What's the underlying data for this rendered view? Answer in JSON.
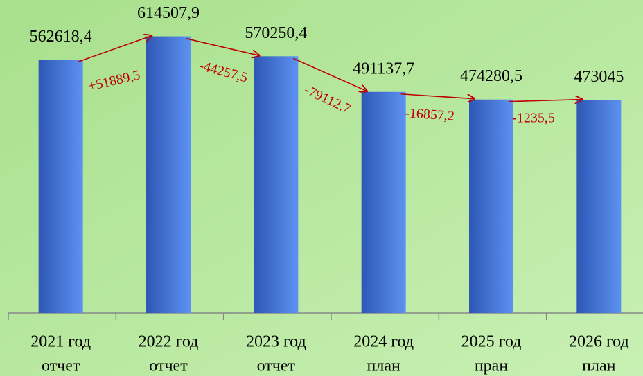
{
  "chart_data": {
    "type": "bar",
    "categories": [
      [
        "2021 год",
        "отчет"
      ],
      [
        "2022 год",
        "отчет"
      ],
      [
        "2023 год",
        "отчет"
      ],
      [
        "2024 год",
        "план"
      ],
      [
        "2025 год",
        "пран"
      ],
      [
        "2026 год",
        "план"
      ]
    ],
    "values": [
      562618.4,
      614507.9,
      570250.4,
      491137.7,
      474280.5,
      473045
    ],
    "value_labels": [
      "562618,4",
      "614507,9",
      "570250,4",
      "491137,7",
      "474280,5",
      "473045"
    ],
    "annotations": [
      "+51889,5",
      "-44257,5",
      "-79112,7",
      "-16857,2",
      "-1235,5"
    ],
    "ylim": [
      0,
      700000
    ]
  }
}
